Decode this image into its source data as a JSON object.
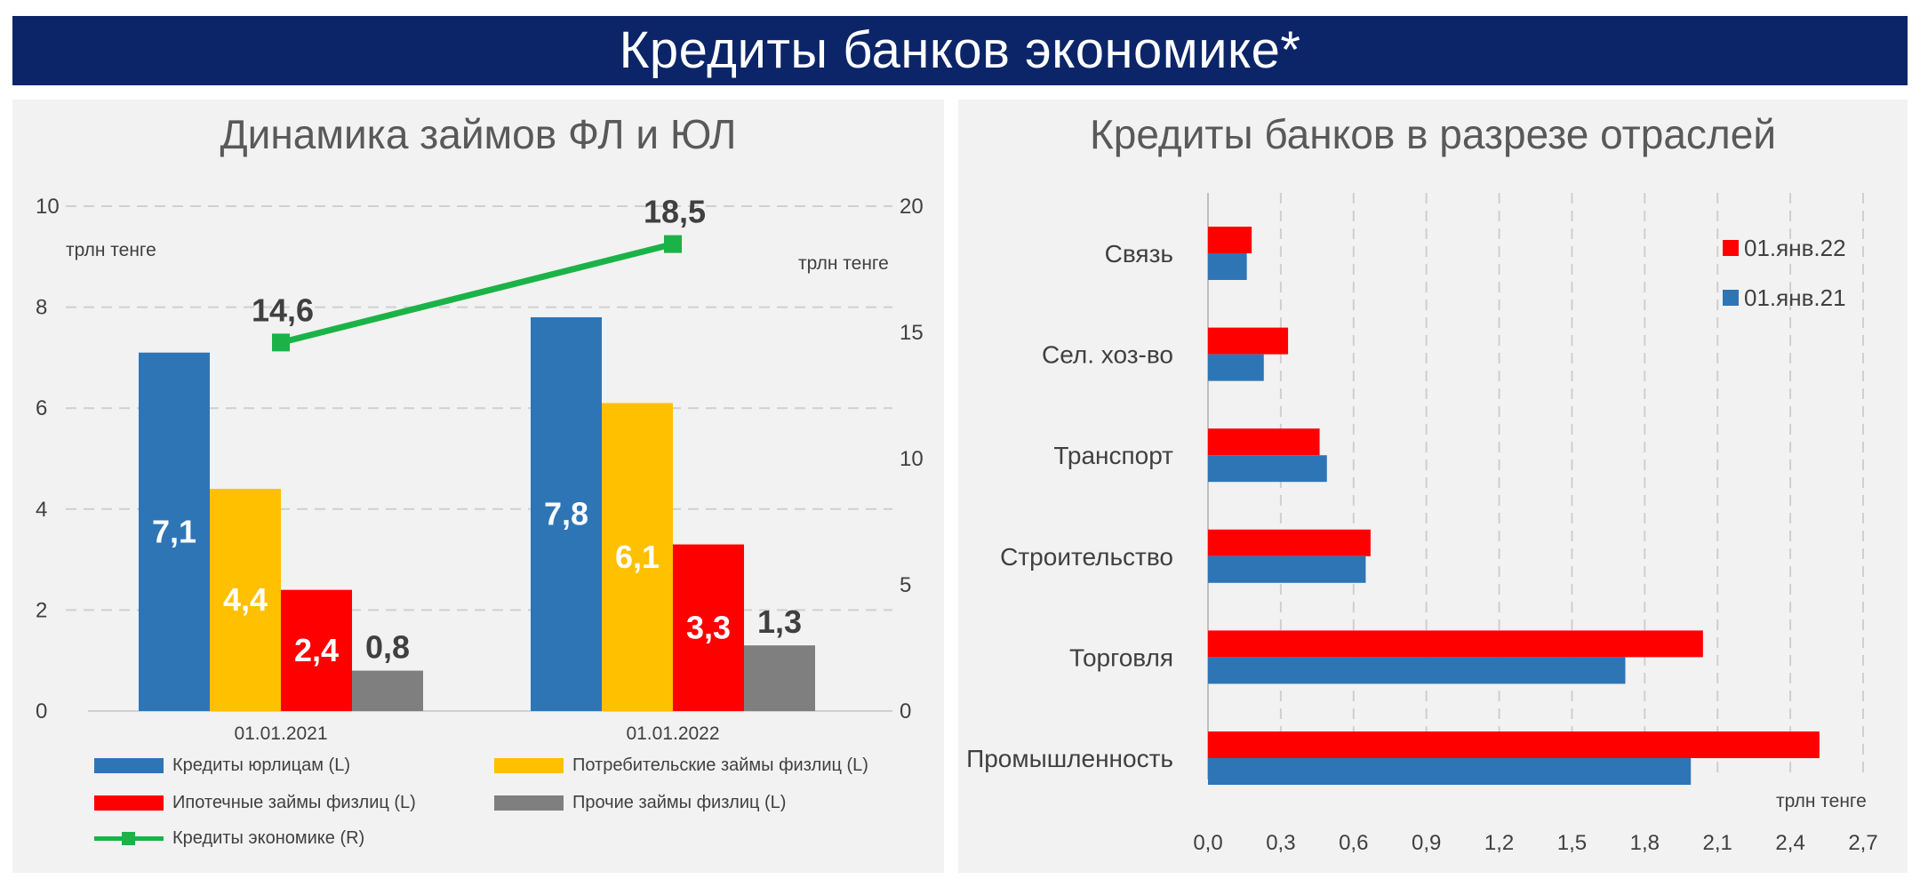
{
  "header": {
    "title": "Кредиты банков экономике*"
  },
  "left": {
    "title": "Динамика займов ФЛ и ЮЛ",
    "left_unit": "трлн тенге",
    "right_unit": "трлн тенге",
    "legend": [
      "Кредиты юрлицам (L)",
      "Потребительские займы физлиц (L)",
      "Ипотечные займы физлиц (L)",
      "Прочие займы физлиц (L)",
      "Кредиты экономике (R)"
    ]
  },
  "right": {
    "title": "Кредиты банков в разрезе отраслей",
    "unit": "трлн тенге"
  },
  "chart_data": [
    {
      "type": "bar",
      "categories": [
        "01.01.2021",
        "01.01.2022"
      ],
      "y_left_lim": [
        0,
        10
      ],
      "y_left_ticks": [
        "0",
        "2",
        "4",
        "6",
        "8",
        "10"
      ],
      "y_right_lim": [
        0,
        20
      ],
      "y_right_ticks": [
        "0",
        "5",
        "10",
        "15",
        "20"
      ],
      "grid": true,
      "legend_position": "bottom",
      "series": [
        {
          "name": "Кредиты юрлицам (L)",
          "axis": "left",
          "values": [
            7.1,
            7.8
          ],
          "labels": [
            "7,1",
            "7,8"
          ],
          "color": "#2e75b6"
        },
        {
          "name": "Потребительские займы физлиц (L)",
          "axis": "left",
          "values": [
            4.4,
            6.1
          ],
          "labels": [
            "4,4",
            "6,1"
          ],
          "color": "#ffc000"
        },
        {
          "name": "Ипотечные займы физлиц (L)",
          "axis": "left",
          "values": [
            2.4,
            3.3
          ],
          "labels": [
            "2,4",
            "3,3"
          ],
          "color": "#ff0000"
        },
        {
          "name": "Прочие займы физлиц (L)",
          "axis": "left",
          "values": [
            0.8,
            1.3
          ],
          "labels": [
            "0,8",
            "1,3"
          ],
          "color": "#7f7f7f"
        },
        {
          "name": "Кредиты экономике (R)",
          "type": "line",
          "axis": "right",
          "values": [
            14.6,
            18.5
          ],
          "labels": [
            "14,6",
            "18,5"
          ],
          "color": "#1bb347"
        }
      ]
    },
    {
      "type": "bar",
      "orientation": "horizontal",
      "categories": [
        "Связь",
        "Сел. хоз-во",
        "Транспорт",
        "Строительство",
        "Торговля",
        "Промышленность"
      ],
      "x_lim": [
        0,
        2.7
      ],
      "x_ticks": [
        "0,0",
        "0,3",
        "0,6",
        "0,9",
        "1,2",
        "1,5",
        "1,8",
        "2,1",
        "2,4",
        "2,7"
      ],
      "grid": "vertical dashed",
      "legend_position": "top-right",
      "series": [
        {
          "name": "01.янв.22",
          "values": [
            0.18,
            0.33,
            0.46,
            0.67,
            2.04,
            2.52
          ],
          "color": "#ff0000"
        },
        {
          "name": "01.янв.21",
          "values": [
            0.16,
            0.23,
            0.49,
            0.65,
            1.72,
            1.99
          ],
          "color": "#2e75b6"
        }
      ]
    }
  ]
}
